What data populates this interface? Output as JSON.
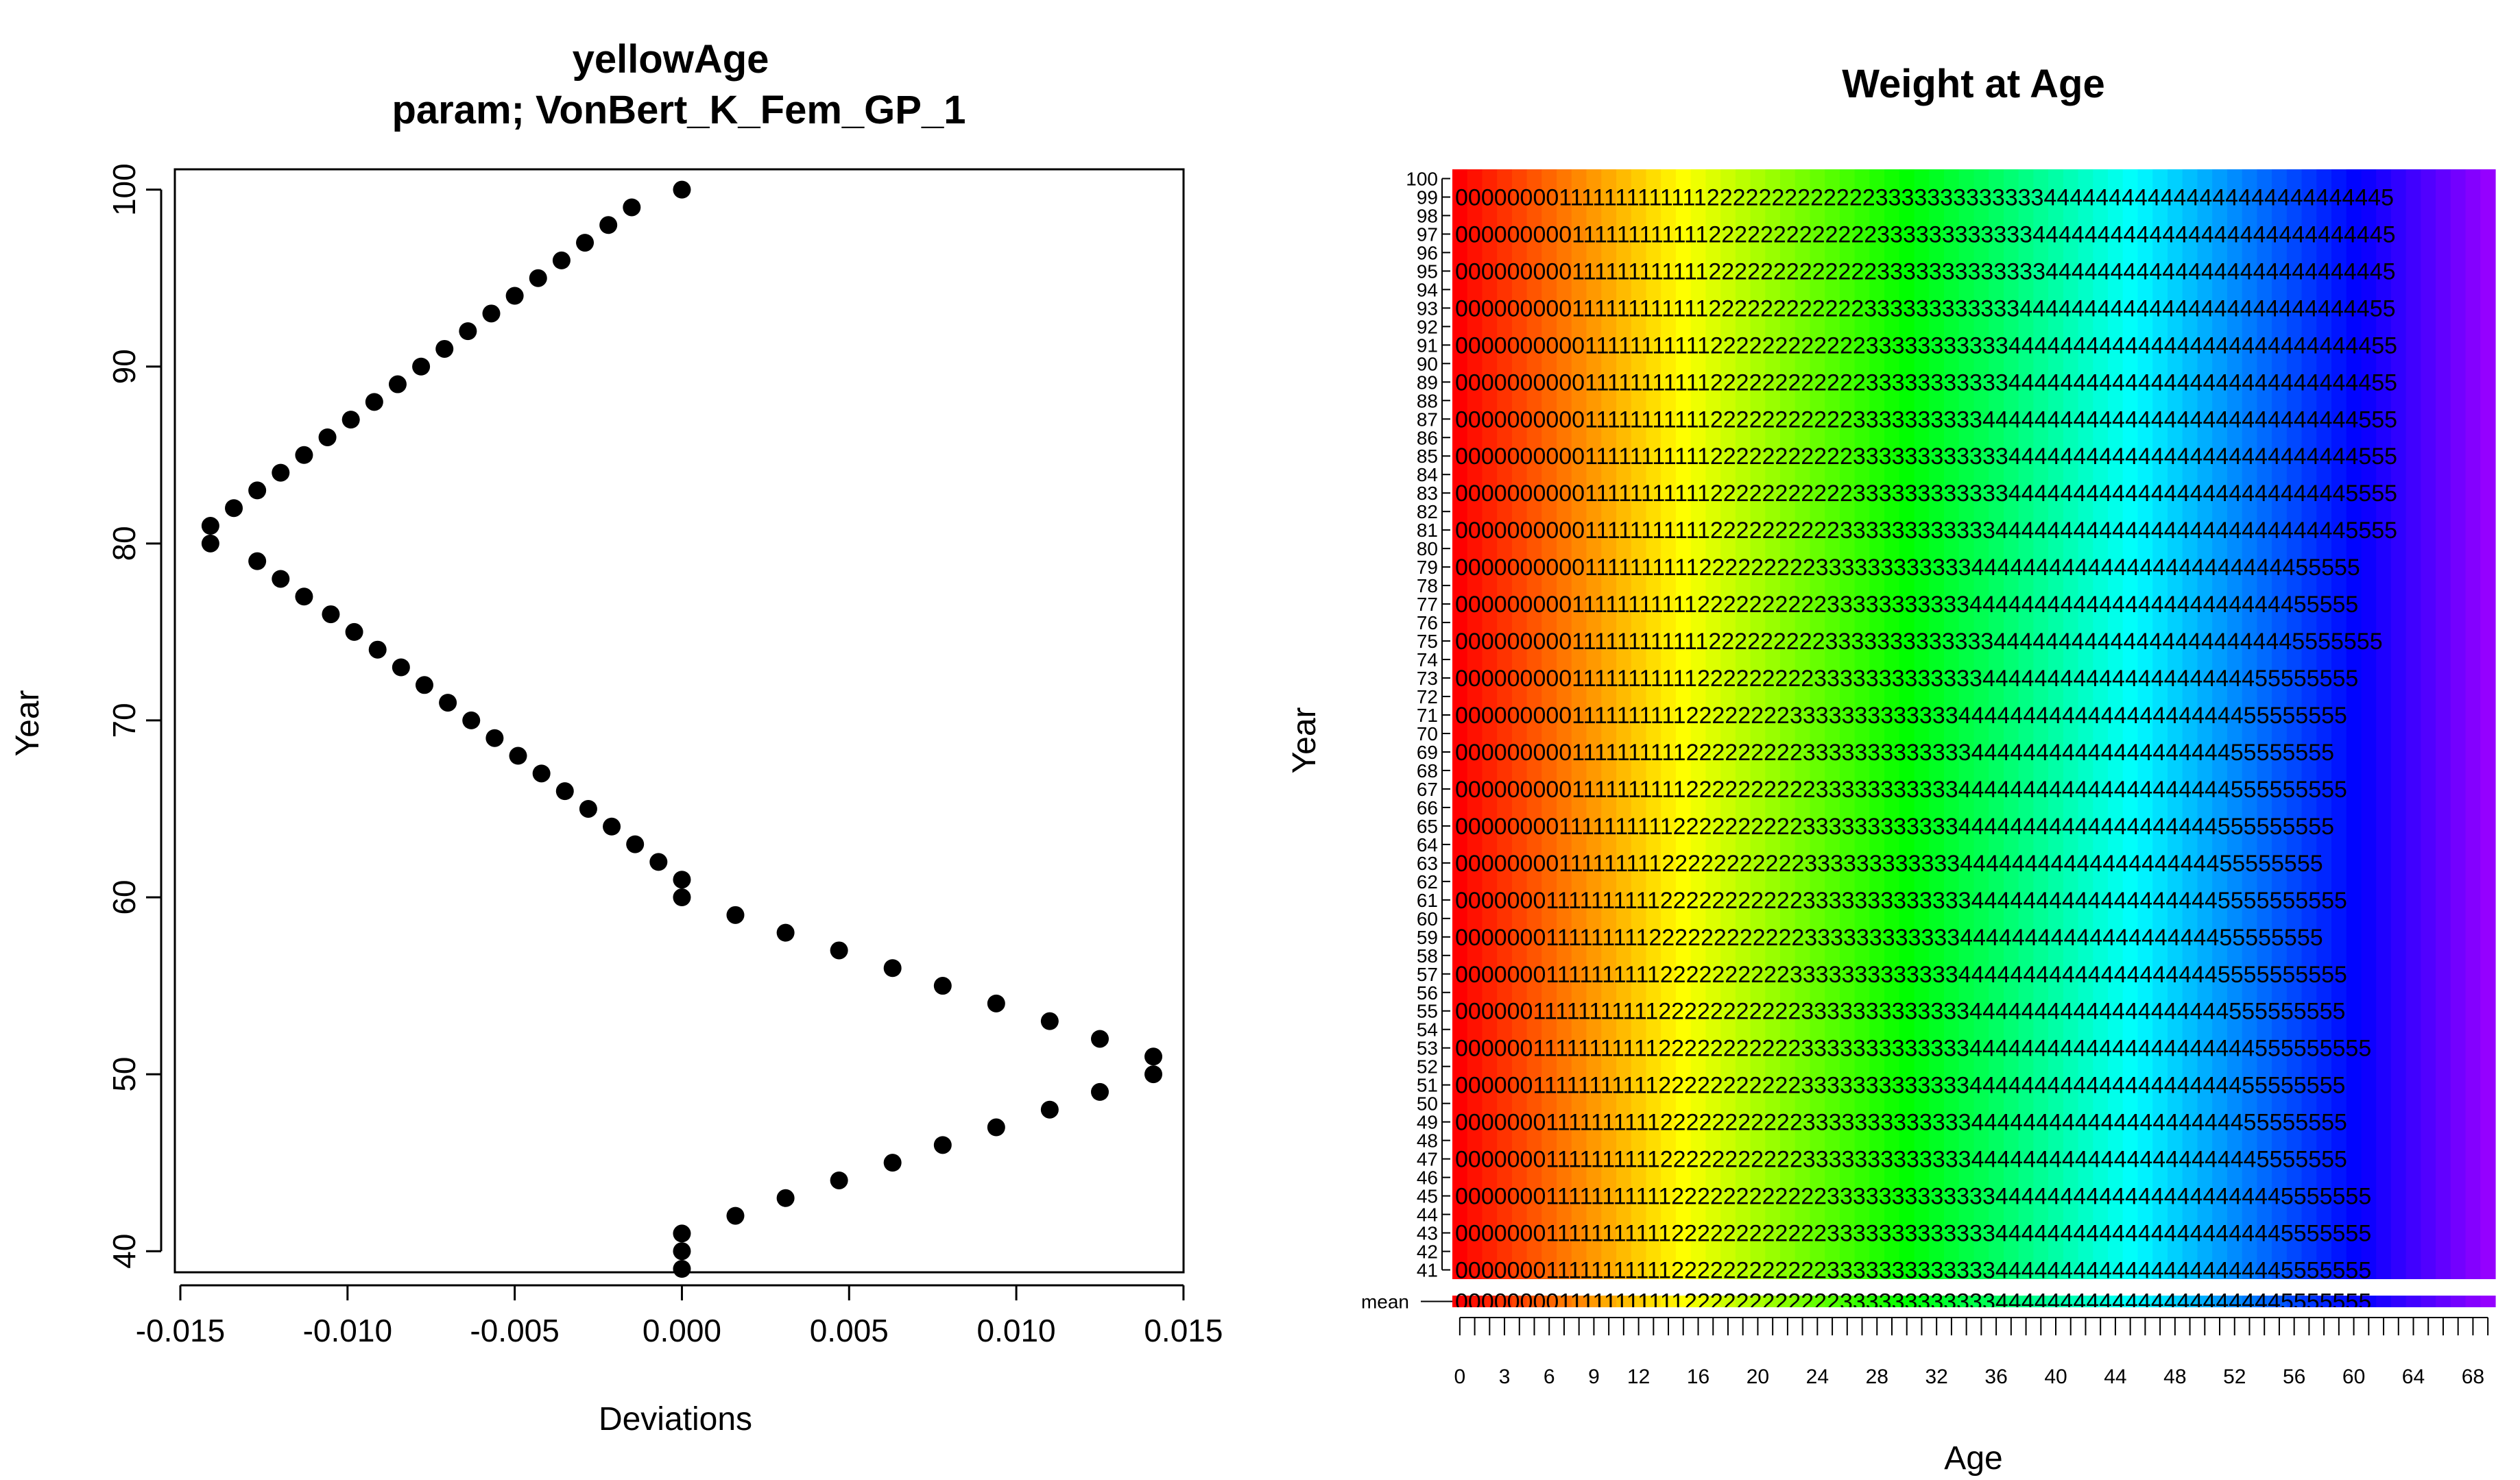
{
  "chart_data": [
    {
      "type": "scatter",
      "title": "yellowAge",
      "subtitle": "param; VonBert_K_Fem_GP_1",
      "xlabel": "Deviations",
      "ylabel": "Year",
      "xlim": [
        -0.015,
        0.015
      ],
      "ylim": [
        39,
        101
      ],
      "x_ticks": [
        "-0.015",
        "-0.010",
        "-0.005",
        "0.000",
        "0.005",
        "0.010",
        "0.015"
      ],
      "y_ticks": [
        "40",
        "50",
        "60",
        "70",
        "80",
        "90",
        "100"
      ],
      "points": {
        "year": [
          39,
          40,
          41,
          42,
          43,
          44,
          45,
          46,
          47,
          48,
          49,
          50,
          51,
          52,
          53,
          54,
          55,
          56,
          57,
          58,
          59,
          60,
          61,
          62,
          63,
          64,
          65,
          66,
          67,
          68,
          69,
          70,
          71,
          72,
          73,
          74,
          75,
          76,
          77,
          78,
          79,
          80,
          81,
          82,
          83,
          84,
          85,
          86,
          87,
          88,
          89,
          90,
          91,
          92,
          93,
          94,
          95,
          96,
          97,
          98,
          99,
          100
        ],
        "deviation": [
          0,
          0,
          0,
          0.0016,
          0.0031,
          0.0047,
          0.0063,
          0.0078,
          0.0094,
          0.011,
          0.0125,
          0.0141,
          0.0141,
          0.0125,
          0.011,
          0.0094,
          0.0078,
          0.0063,
          0.0047,
          0.0031,
          0.0016,
          0,
          0,
          -0.0007,
          -0.0014,
          -0.0021,
          -0.0028,
          -0.0035,
          -0.0042,
          -0.0049,
          -0.0056,
          -0.0063,
          -0.007,
          -0.0077,
          -0.0084,
          -0.0091,
          -0.0098,
          -0.0105,
          -0.0113,
          -0.012,
          -0.0127,
          -0.0141,
          -0.0141,
          -0.0134,
          -0.0127,
          -0.012,
          -0.0113,
          -0.0106,
          -0.0099,
          -0.0092,
          -0.0085,
          -0.0078,
          -0.0071,
          -0.0064,
          -0.0057,
          -0.005,
          -0.0043,
          -0.0036,
          -0.0029,
          -0.0022,
          -0.0015,
          0
        ]
      }
    },
    {
      "type": "heatmap",
      "title": "Weight at Age",
      "xlabel": "Age",
      "ylabel": "Year",
      "age_range": [
        0,
        70
      ],
      "x_ticks": [
        "0",
        "3",
        "6",
        "9",
        "12",
        "16",
        "20",
        "24",
        "28",
        "32",
        "36",
        "40",
        "44",
        "48",
        "52",
        "56",
        "60",
        "64",
        "68"
      ],
      "y_labels": [
        "100",
        "99",
        "98",
        "97",
        "96",
        "95",
        "94",
        "93",
        "92",
        "91",
        "90",
        "89",
        "88",
        "87",
        "86",
        "85",
        "84",
        "83",
        "82",
        "81",
        "80",
        "79",
        "78",
        "77",
        "76",
        "75",
        "74",
        "73",
        "72",
        "71",
        "70",
        "69",
        "68",
        "67",
        "66",
        "65",
        "64",
        "63",
        "62",
        "61",
        "60",
        "59",
        "58",
        "57",
        "56",
        "55",
        "54",
        "53",
        "52",
        "51",
        "50",
        "49",
        "48",
        "47",
        "46",
        "45",
        "44",
        "43",
        "42",
        "41"
      ],
      "mean_label": "mean",
      "color_scale": "rainbow: red (young ages) through orange, yellow, green, cyan, blue to violet (oldest ages)",
      "text_rows": [
        {
          "year": "99",
          "text": "00000000111111111111122222222222223333333333333444444444444444444444444445"
        },
        {
          "year": "97",
          "text": "00000000011111111111122222222222223333333333334444444444444444444444444445"
        },
        {
          "year": "95",
          "text": "00000000011111111111122222222222223333333333333444444444444444444444444445"
        },
        {
          "year": "93",
          "text": "00000000011111111111122222222222233333333333344444444444444444444444444455"
        },
        {
          "year": "91",
          "text": "00000000001111111111122222222222233333333333444444444444444444444444444455"
        },
        {
          "year": "89",
          "text": "00000000001111111111122222222222233333333333444444444444444444444444444455"
        },
        {
          "year": "87",
          "text": "00000000001111111111122222222222333333333344444444444444444444444444444555"
        },
        {
          "year": "85",
          "text": "00000000001111111111122222222222333333333333444444444444444444444444444555"
        },
        {
          "year": "83",
          "text": "00000000001111111111122222222222333333333333444444444444444444444444445555"
        },
        {
          "year": "81",
          "text": "00000000001111111111122222222223333333333334444444444444444444444444445555"
        },
        {
          "year": "79",
          "text": "00000000001111111111222222222333333333333444444444444444444444444455555"
        },
        {
          "year": "77",
          "text": "00000000011111111111222222222233333333333444444444444444444444444455555"
        },
        {
          "year": "75",
          "text": "0000000001111111111112222222223333333333333444444444444444444444445555555"
        },
        {
          "year": "73",
          "text": "00000000011111111111222222222333333333333344444444444444444444455555555"
        },
        {
          "year": "71",
          "text": "0000000001111111111222222223333333333333444444444444444444444455555555"
        },
        {
          "year": "69",
          "text": "000000000111111111122222222233333333333334444444444444444444455555555"
        },
        {
          "year": "67",
          "text": "0000000001111111111222222222233333333333444444444444444444444555555555"
        },
        {
          "year": "65",
          "text": "000000001111111111222222222233333333333344444444444444444444555555555"
        },
        {
          "year": "63",
          "text": "00000000111111111222222222223333333333334444444444444444444455555555"
        },
        {
          "year": "61",
          "text": "0000000111111111122222222222333333333333344444444444444444445555555555"
        },
        {
          "year": "59",
          "text": "00000001111111112222222222223333333333334444444444444444444455555555"
        },
        {
          "year": "57",
          "text": "0000000111111111122222222223333333333333444444444444444444445555555555"
        },
        {
          "year": "55",
          "text": "0000001111111111122222222222333333333333344444444444444444444555555555"
        },
        {
          "year": "53",
          "text": "000000111111111112222222222233333333333334444444444444444444444555555555"
        },
        {
          "year": "51",
          "text": "0000001111111111122222222222333333333333344444444444444444444455555555"
        },
        {
          "year": "49",
          "text": "0000000111111111122222222222333333333333344444444444444444444455555555"
        },
        {
          "year": "47",
          "text": "0000000111111111122222222222333333333333344444444444444444444445555555"
        },
        {
          "year": "45",
          "text": "000000011111111111222222222222333333333333344444444444444444444445555555"
        },
        {
          "year": "43",
          "text": "000000011111111111222222222222333333333333344444444444444444444445555555"
        },
        {
          "year": "41",
          "text": "000000011111111111222222222222333333333333344444444444444444444445555555"
        },
        {
          "year": "mean",
          "text": "000000001111111111122222222222233333333333344444444444444444444445555555"
        }
      ]
    }
  ]
}
